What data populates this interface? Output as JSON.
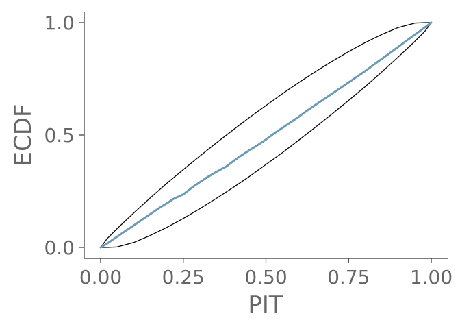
{
  "chart_data": {
    "type": "line",
    "xlabel": "PIT",
    "ylabel": "ECDF",
    "xlim": [
      0,
      1
    ],
    "ylim": [
      0,
      1
    ],
    "x_ticks": [
      {
        "value": 0.0,
        "label": "0.00"
      },
      {
        "value": 0.25,
        "label": "0.25"
      },
      {
        "value": 0.5,
        "label": "0.50"
      },
      {
        "value": 0.75,
        "label": "0.75"
      },
      {
        "value": 1.0,
        "label": "1.00"
      }
    ],
    "y_ticks": [
      {
        "value": 0.0,
        "label": "0.0"
      },
      {
        "value": 0.5,
        "label": "0.5"
      },
      {
        "value": 1.0,
        "label": "1.0"
      }
    ],
    "grid": false,
    "legend": "none",
    "series": [
      {
        "kind": "ecdf",
        "color": "#6a9ab4",
        "x": [
          0,
          0.02,
          0.05,
          0.08,
          0.1,
          0.12,
          0.15,
          0.18,
          0.2,
          0.22,
          0.25,
          0.28,
          0.3,
          0.32,
          0.35,
          0.38,
          0.4,
          0.42,
          0.45,
          0.48,
          0.5,
          0.52,
          0.55,
          0.58,
          0.6,
          0.62,
          0.65,
          0.68,
          0.7,
          0.72,
          0.75,
          0.78,
          0.8,
          0.82,
          0.85,
          0.88,
          0.9,
          0.92,
          0.95,
          0.98,
          1.0
        ],
        "values": [
          0,
          0.018,
          0.048,
          0.078,
          0.098,
          0.118,
          0.148,
          0.178,
          0.196,
          0.216,
          0.236,
          0.27,
          0.29,
          0.31,
          0.336,
          0.36,
          0.382,
          0.404,
          0.432,
          0.46,
          0.48,
          0.502,
          0.532,
          0.562,
          0.582,
          0.604,
          0.634,
          0.664,
          0.684,
          0.704,
          0.734,
          0.764,
          0.784,
          0.806,
          0.838,
          0.87,
          0.892,
          0.914,
          0.946,
          0.978,
          1.0
        ]
      },
      {
        "kind": "envelope-upper",
        "color": "#000000",
        "x": [
          0,
          0.02,
          0.05,
          0.1,
          0.15,
          0.2,
          0.25,
          0.3,
          0.35,
          0.4,
          0.45,
          0.5,
          0.55,
          0.6,
          0.65,
          0.7,
          0.75,
          0.8,
          0.85,
          0.9,
          0.95,
          0.98,
          1.0
        ],
        "values": [
          0,
          0.04,
          0.084,
          0.153,
          0.22,
          0.285,
          0.346,
          0.406,
          0.465,
          0.522,
          0.578,
          0.631,
          0.684,
          0.734,
          0.782,
          0.828,
          0.871,
          0.911,
          0.947,
          0.978,
          0.998,
          1.0,
          1.0
        ]
      },
      {
        "kind": "envelope-lower",
        "color": "#000000",
        "x": [
          0,
          0.02,
          0.05,
          0.1,
          0.15,
          0.2,
          0.25,
          0.3,
          0.35,
          0.4,
          0.45,
          0.5,
          0.55,
          0.6,
          0.65,
          0.7,
          0.75,
          0.8,
          0.85,
          0.9,
          0.95,
          0.98,
          1.0
        ],
        "values": [
          0,
          0.0,
          0.002,
          0.022,
          0.053,
          0.089,
          0.129,
          0.172,
          0.218,
          0.266,
          0.316,
          0.369,
          0.422,
          0.478,
          0.535,
          0.594,
          0.654,
          0.715,
          0.78,
          0.847,
          0.916,
          0.96,
          1.0
        ]
      }
    ]
  }
}
